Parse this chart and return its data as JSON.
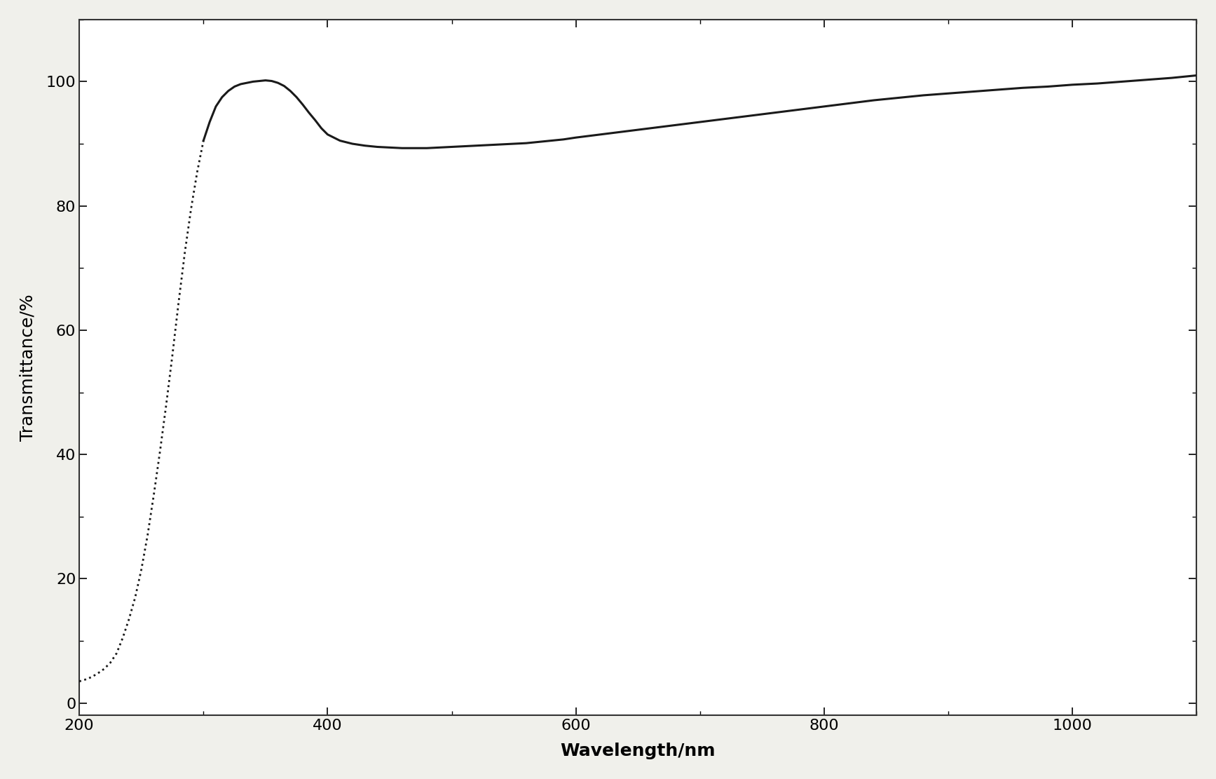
{
  "title": "",
  "xlabel": "Wavelength/nm",
  "ylabel": "Transmittance/%",
  "xlabel_fontsize": 18,
  "ylabel_fontsize": 18,
  "tick_fontsize": 16,
  "xlim": [
    200,
    1100
  ],
  "ylim": [
    -2,
    110
  ],
  "xticks": [
    200,
    400,
    600,
    800,
    1000
  ],
  "yticks": [
    0,
    20,
    40,
    60,
    80,
    100
  ],
  "line_color": "#1a1a1a",
  "background_color": "#f0f0eb",
  "plot_bg_color": "#ffffff",
  "transition_idx": 20,
  "x": [
    200,
    205,
    210,
    215,
    220,
    225,
    230,
    235,
    240,
    245,
    250,
    255,
    260,
    265,
    270,
    275,
    280,
    285,
    290,
    295,
    300,
    305,
    310,
    315,
    320,
    325,
    330,
    335,
    340,
    345,
    350,
    355,
    360,
    365,
    370,
    375,
    380,
    385,
    390,
    395,
    400,
    410,
    420,
    430,
    440,
    450,
    460,
    470,
    480,
    490,
    500,
    510,
    520,
    530,
    540,
    550,
    560,
    570,
    580,
    590,
    600,
    620,
    640,
    660,
    680,
    700,
    720,
    740,
    760,
    780,
    800,
    820,
    840,
    860,
    880,
    900,
    920,
    940,
    960,
    980,
    1000,
    1020,
    1040,
    1060,
    1080,
    1100
  ],
  "y": [
    3.5,
    3.8,
    4.2,
    4.8,
    5.5,
    6.5,
    8.0,
    10.5,
    13.5,
    17.0,
    21.5,
    27.0,
    33.5,
    40.5,
    48.0,
    56.0,
    64.5,
    72.5,
    79.5,
    85.5,
    90.5,
    93.5,
    96.0,
    97.5,
    98.5,
    99.2,
    99.6,
    99.8,
    100.0,
    100.1,
    100.2,
    100.1,
    99.8,
    99.3,
    98.5,
    97.5,
    96.3,
    95.0,
    93.8,
    92.5,
    91.5,
    90.5,
    90.0,
    89.7,
    89.5,
    89.4,
    89.3,
    89.3,
    89.3,
    89.4,
    89.5,
    89.6,
    89.7,
    89.8,
    89.9,
    90.0,
    90.1,
    90.3,
    90.5,
    90.7,
    91.0,
    91.5,
    92.0,
    92.5,
    93.0,
    93.5,
    94.0,
    94.5,
    95.0,
    95.5,
    96.0,
    96.5,
    97.0,
    97.4,
    97.8,
    98.1,
    98.4,
    98.7,
    99.0,
    99.2,
    99.5,
    99.7,
    100.0,
    100.3,
    100.6,
    101.0
  ]
}
